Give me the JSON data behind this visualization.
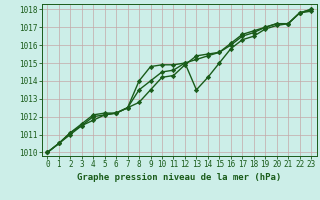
{
  "x": [
    0,
    1,
    2,
    3,
    4,
    5,
    6,
    7,
    8,
    9,
    10,
    11,
    12,
    13,
    14,
    15,
    16,
    17,
    18,
    19,
    20,
    21,
    22,
    23
  ],
  "line1": [
    1010.0,
    1010.5,
    1011.1,
    1011.6,
    1012.1,
    1012.2,
    1012.2,
    1012.5,
    1012.8,
    1013.5,
    1014.2,
    1014.3,
    1014.9,
    1015.4,
    1015.5,
    1015.6,
    1016.1,
    1016.6,
    1016.8,
    1017.0,
    1017.2,
    1017.2,
    1017.8,
    1018.0
  ],
  "line2": [
    1010.0,
    1010.5,
    1011.1,
    1011.5,
    1011.8,
    1012.1,
    1012.2,
    1012.5,
    1014.0,
    1014.8,
    1014.9,
    1014.9,
    1015.0,
    1013.5,
    1014.2,
    1015.0,
    1015.8,
    1016.3,
    1016.5,
    1016.9,
    1017.1,
    1017.2,
    1017.8,
    1017.9
  ],
  "line3": [
    1010.0,
    1010.5,
    1011.0,
    1011.5,
    1012.0,
    1012.1,
    1012.2,
    1012.5,
    1013.5,
    1014.0,
    1014.5,
    1014.6,
    1015.0,
    1015.2,
    1015.4,
    1015.6,
    1016.0,
    1016.5,
    1016.7,
    1017.0,
    1017.2,
    1017.2,
    1017.8,
    1018.0
  ],
  "ylim": [
    1009.8,
    1018.3
  ],
  "yticks": [
    1010,
    1011,
    1012,
    1013,
    1014,
    1015,
    1016,
    1017,
    1018
  ],
  "xticks": [
    0,
    1,
    2,
    3,
    4,
    5,
    6,
    7,
    8,
    9,
    10,
    11,
    12,
    13,
    14,
    15,
    16,
    17,
    18,
    19,
    20,
    21,
    22,
    23
  ],
  "xlabel": "Graphe pression niveau de la mer (hPa)",
  "line_color": "#1a5c1a",
  "bg_color": "#cceee8",
  "grid_color": "#c4a8a8",
  "marker": "D",
  "marker_size": 2.2,
  "line_width": 1.0,
  "tick_fontsize": 5.5,
  "xlabel_fontsize": 6.5
}
